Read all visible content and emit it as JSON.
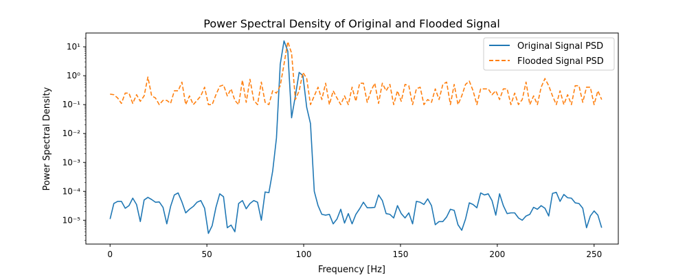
{
  "chart_data": {
    "type": "line",
    "title": "Power Spectral Density of Original and Flooded Signal",
    "xlabel": "Frequency [Hz]",
    "ylabel": "Power Spectral Density",
    "yscale": "log",
    "xlim": [
      -12.5,
      262.5
    ],
    "ylim": [
      1.5e-06,
      30
    ],
    "x_ticks": [
      0,
      50,
      100,
      150,
      200,
      250
    ],
    "x_tick_labels": [
      "0",
      "50",
      "100",
      "150",
      "200",
      "250"
    ],
    "y_ticks": [
      1e-05,
      0.0001,
      0.001,
      0.01,
      0.1,
      1,
      10
    ],
    "y_tick_labels": [
      "10⁻⁵",
      "10⁻⁴",
      "10⁻³",
      "10⁻²",
      "10⁻¹",
      "10⁰",
      "10¹"
    ],
    "grid": false,
    "legend_position": "top-right",
    "x_step": 1.953125,
    "x_points": 129,
    "series": [
      {
        "name": "Original Signal PSD",
        "color": "#1f77b4",
        "linestyle": "solid",
        "values": [
          1.1e-05,
          3.8e-05,
          4.5e-05,
          4.5e-05,
          2.6e-05,
          3.2e-05,
          5.8e-05,
          3.5e-05,
          9e-06,
          5e-05,
          6.2e-05,
          5.2e-05,
          4.2e-05,
          4.3e-05,
          2.8e-05,
          7.5e-06,
          3e-05,
          7.5e-05,
          8.8e-05,
          4.3e-05,
          1.8e-05,
          2.4e-05,
          3e-05,
          4.2e-05,
          4.8e-05,
          2.6e-05,
          3.5e-06,
          6.5e-06,
          2.8e-05,
          8.2e-05,
          6.5e-05,
          5.5e-06,
          6.8e-06,
          4e-06,
          3.8e-05,
          4.8e-05,
          2.5e-05,
          3.8e-05,
          4.8e-05,
          4.2e-05,
          1e-05,
          9.5e-05,
          9e-05,
          0.0005,
          0.007,
          2.5,
          16,
          7,
          0.035,
          0.2,
          1.3,
          1.0,
          0.08,
          0.022,
          0.0001,
          3.2e-05,
          1.6e-05,
          1.5e-05,
          1.6e-05,
          7.5e-06,
          1.1e-05,
          2.4e-05,
          8e-06,
          1.7e-05,
          7.5e-06,
          1.6e-05,
          2.5e-05,
          4.2e-05,
          2.7e-05,
          2.7e-05,
          2.8e-05,
          7.5e-05,
          4.8e-05,
          1.7e-05,
          1.6e-05,
          1.2e-05,
          3.2e-05,
          1.7e-05,
          1.2e-05,
          1.8e-05,
          7.5e-06,
          4.5e-05,
          4.2e-05,
          3.5e-05,
          5.5e-05,
          3.2e-05,
          7e-06,
          9e-06,
          9e-06,
          1.3e-05,
          2.4e-05,
          2.2e-05,
          7e-06,
          4.5e-06,
          1.1e-05,
          4e-05,
          3.5e-05,
          2.7e-05,
          8.8e-05,
          7.5e-05,
          8.2e-05,
          4.8e-05,
          1.5e-05,
          8.2e-05,
          3.2e-05,
          1.7e-05,
          1.8e-05,
          1.8e-05,
          1.2e-05,
          1e-05,
          1.4e-05,
          1.6e-05,
          2.8e-05,
          2.4e-05,
          3.2e-05,
          2.6e-05,
          1.4e-05,
          8.5e-05,
          9.2e-05,
          4.5e-05,
          7.8e-05,
          6e-05,
          5.8e-05,
          4e-05,
          3.8e-05,
          2.6e-05,
          5.5e-06,
          1.4e-05,
          2.1e-05,
          1.5e-05,
          5.5e-06
        ]
      },
      {
        "name": "Flooded Signal PSD",
        "color": "#ff7f0e",
        "linestyle": "dashed",
        "values": [
          0.23,
          0.22,
          0.17,
          0.11,
          0.25,
          0.25,
          0.11,
          0.22,
          0.13,
          0.2,
          0.9,
          0.2,
          0.17,
          0.1,
          0.14,
          0.14,
          0.11,
          0.3,
          0.3,
          0.6,
          0.1,
          0.2,
          0.1,
          0.14,
          0.2,
          0.4,
          0.1,
          0.1,
          0.22,
          0.43,
          0.48,
          0.2,
          0.35,
          0.14,
          0.1,
          0.7,
          0.12,
          0.75,
          0.14,
          0.1,
          0.6,
          0.12,
          0.1,
          0.3,
          0.25,
          0.45,
          2.5,
          15,
          6,
          0.15,
          0.3,
          1.3,
          0.8,
          0.1,
          0.2,
          0.4,
          0.15,
          0.55,
          0.1,
          0.3,
          0.17,
          0.1,
          0.2,
          0.1,
          0.4,
          0.13,
          0.55,
          0.55,
          0.12,
          0.3,
          0.55,
          0.11,
          0.55,
          0.3,
          0.5,
          0.1,
          0.3,
          0.13,
          0.5,
          0.45,
          0.1,
          0.35,
          0.4,
          0.1,
          0.15,
          0.12,
          0.35,
          0.15,
          0.5,
          0.6,
          0.1,
          0.5,
          0.1,
          0.2,
          0.5,
          0.65,
          0.3,
          0.1,
          0.35,
          0.35,
          0.35,
          0.22,
          0.3,
          0.15,
          0.35,
          0.35,
          0.1,
          0.25,
          0.1,
          0.15,
          0.6,
          0.1,
          0.2,
          0.1,
          0.4,
          0.8,
          0.45,
          0.2,
          0.1,
          0.3,
          0.1,
          0.22,
          0.1,
          0.45,
          0.45,
          0.12,
          0.4,
          0.4,
          0.1,
          0.3,
          0.15
        ]
      }
    ]
  }
}
